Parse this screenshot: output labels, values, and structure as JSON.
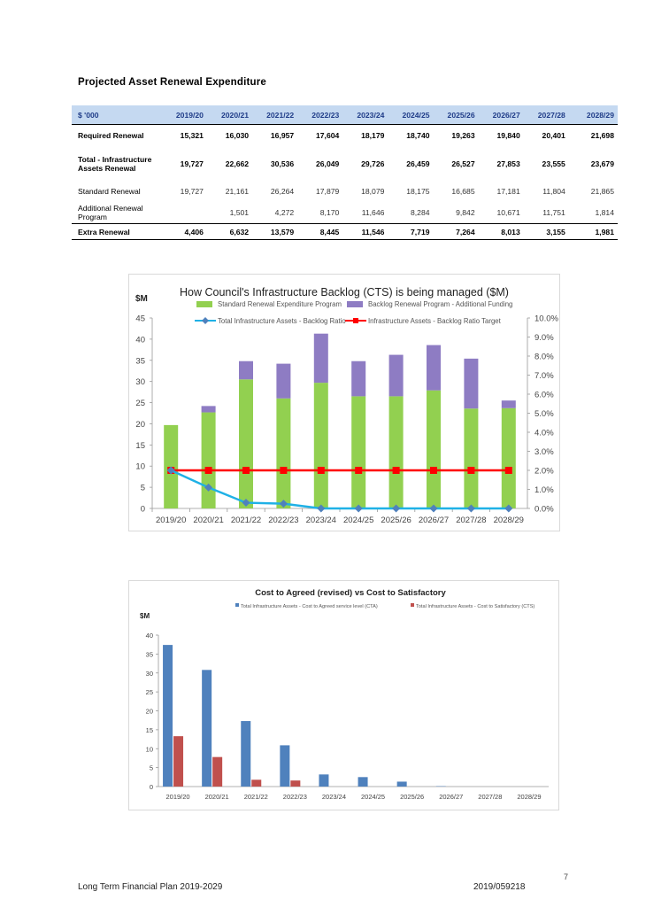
{
  "section_title": "Projected Asset Renewal Expenditure",
  "table": {
    "header": [
      "$ '000",
      "2019/20",
      "2020/21",
      "2021/22",
      "2022/23",
      "2023/24",
      "2024/25",
      "2025/26",
      "2026/27",
      "2027/28",
      "2028/29"
    ],
    "rows": [
      {
        "label": "Required Renewal",
        "style": "bold",
        "values": [
          "15,321",
          "16,030",
          "16,957",
          "17,604",
          "18,179",
          "18,740",
          "19,263",
          "19,840",
          "20,401",
          "21,698"
        ]
      },
      {
        "label": "Total - Infrastructure Assets Renewal",
        "style": "bold",
        "values": [
          "19,727",
          "22,662",
          "30,536",
          "26,049",
          "29,726",
          "26,459",
          "26,527",
          "27,853",
          "23,555",
          "23,679"
        ]
      },
      {
        "label": "Standard Renewal",
        "style": "light",
        "values": [
          "19,727",
          "21,161",
          "26,264",
          "17,879",
          "18,079",
          "18,175",
          "16,685",
          "17,181",
          "11,804",
          "21,865"
        ]
      },
      {
        "label": "Additional Renewal Program",
        "style": "light",
        "values": [
          "",
          "1,501",
          "4,272",
          "8,170",
          "11,646",
          "8,284",
          "9,842",
          "10,671",
          "11,751",
          "1,814"
        ]
      },
      {
        "label": "Extra Renewal",
        "style": "extra",
        "values": [
          "4,406",
          "6,632",
          "13,579",
          "8,445",
          "11,546",
          "7,719",
          "7,264",
          "8,013",
          "3,155",
          "1,981"
        ]
      }
    ]
  },
  "chart_data": [
    {
      "type": "bar",
      "title": "How Council's Infrastructure Backlog (CTS) is being managed ($M)",
      "ylabel": "$M",
      "ylim": [
        0,
        45
      ],
      "y2lim": [
        0,
        10
      ],
      "y_ticks": [
        "0",
        "5",
        "10",
        "15",
        "20",
        "25",
        "30",
        "35",
        "40",
        "45"
      ],
      "y2_ticks": [
        "0.0%",
        "1.0%",
        "2.0%",
        "3.0%",
        "4.0%",
        "5.0%",
        "6.0%",
        "7.0%",
        "8.0%",
        "9.0%",
        "10.0%"
      ],
      "categories": [
        "2019/20",
        "2020/21",
        "2021/22",
        "2022/23",
        "2023/24",
        "2024/25",
        "2025/26",
        "2026/27",
        "2027/28",
        "2028/29"
      ],
      "stacked": true,
      "series": [
        {
          "name": "Standard Renewal Expenditure Program",
          "color": "#92d050",
          "kind": "bar",
          "values": [
            19.7,
            22.7,
            30.5,
            26.0,
            29.7,
            26.5,
            26.5,
            27.9,
            23.6,
            23.7
          ]
        },
        {
          "name": "Backlog Renewal Program - Additional Funding",
          "color": "#8e7cc3",
          "kind": "bar",
          "values": [
            0,
            1.5,
            4.3,
            8.2,
            11.6,
            8.3,
            9.8,
            10.7,
            11.8,
            1.8
          ]
        },
        {
          "name": "Total Infrastructure Assets - Backlog Ratio",
          "color": "#1fb1e6",
          "kind": "line",
          "axis": "right",
          "marker": "diamond",
          "values": [
            2.0,
            1.1,
            0.3,
            0.25,
            0.0,
            0.0,
            0.0,
            0.0,
            0.0,
            0.0
          ]
        },
        {
          "name": "Infrastructure Assets - Backlog Ratio Target",
          "color": "#ff0000",
          "kind": "line",
          "axis": "right",
          "marker": "square",
          "values": [
            2.0,
            2.0,
            2.0,
            2.0,
            2.0,
            2.0,
            2.0,
            2.0,
            2.0,
            2.0
          ]
        }
      ],
      "legend": "top"
    },
    {
      "type": "bar",
      "title": "Cost to Agreed (revised) vs Cost to Satisfactory",
      "ylabel": "$M",
      "ylim": [
        0,
        40
      ],
      "y_ticks": [
        "0",
        "5",
        "10",
        "15",
        "20",
        "25",
        "30",
        "35",
        "40"
      ],
      "categories": [
        "2019/20",
        "2020/21",
        "2021/22",
        "2022/23",
        "2023/24",
        "2024/25",
        "2025/26",
        "2026/27",
        "2027/28",
        "2028/29"
      ],
      "series": [
        {
          "name": "Total Infrastructure Assets - Cost to Agreed service level (CTA)",
          "color": "#4f81bd",
          "values": [
            37.4,
            30.8,
            17.3,
            10.9,
            3.2,
            2.5,
            1.3,
            0.1,
            0,
            0
          ]
        },
        {
          "name": "Total Infrastructure Assets - Cost to Satisfactory (CTS)",
          "color": "#c0504d",
          "values": [
            13.3,
            7.8,
            1.8,
            1.6,
            0,
            0,
            0,
            0,
            0,
            0
          ]
        }
      ],
      "legend": "top"
    }
  ],
  "footer": {
    "left": "Long Term Financial Plan 2019-2029",
    "right": "2019/059218",
    "page_number": "7"
  }
}
